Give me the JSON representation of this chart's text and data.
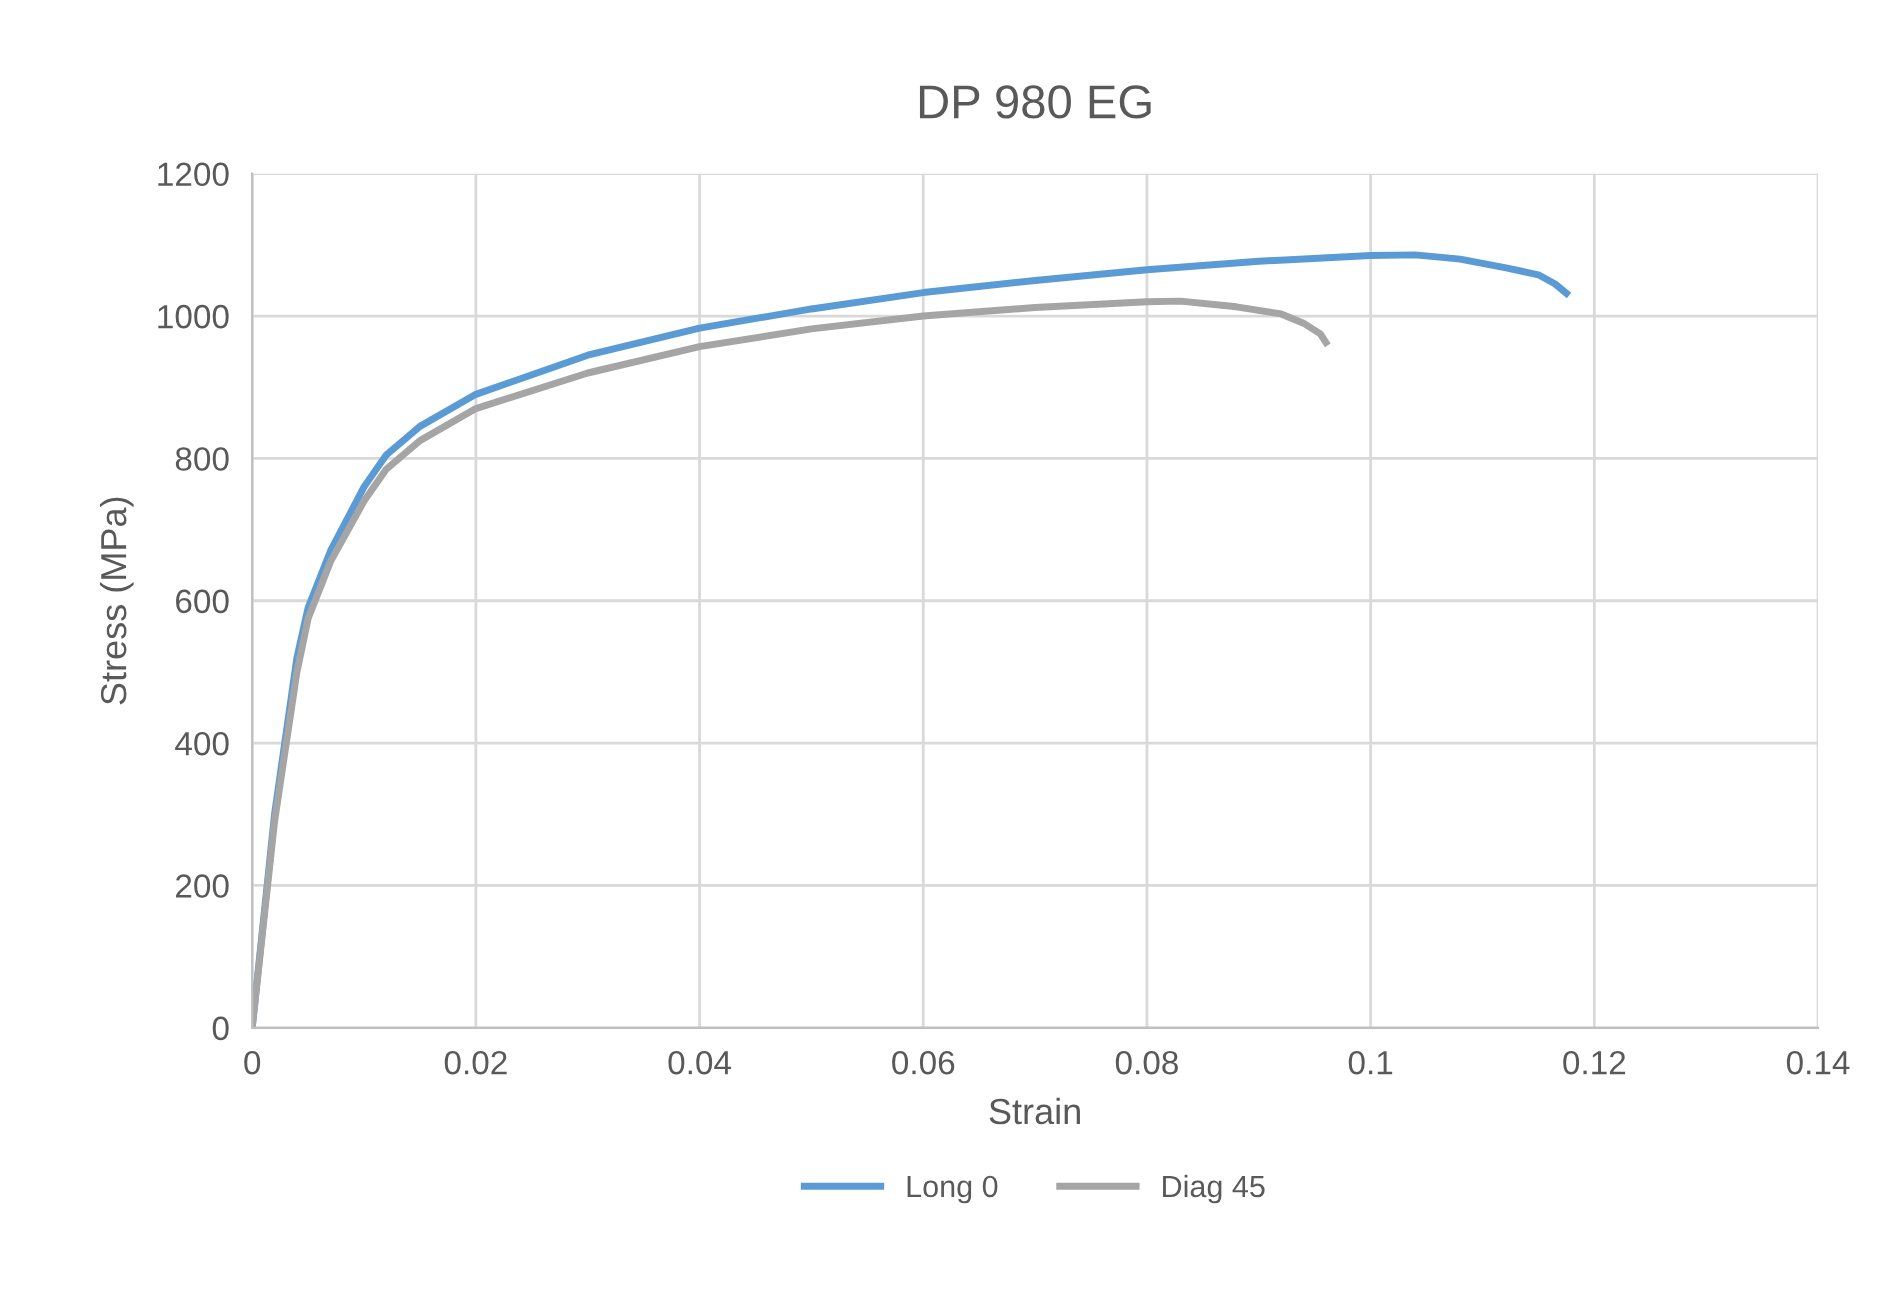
{
  "chart_data": {
    "type": "line",
    "title": "DP 980 EG",
    "xlabel": "Strain",
    "ylabel": "Stress (MPa)",
    "xlim": [
      0,
      0.14
    ],
    "xticks": [
      0,
      0.02,
      0.04,
      0.06,
      0.08,
      0.1,
      0.12,
      0.14
    ],
    "ylim": [
      0,
      1200
    ],
    "yticks": [
      0,
      200,
      400,
      600,
      800,
      1000,
      1200
    ],
    "grid": true,
    "legend": "bottom",
    "marker": "none",
    "line_style": "solid",
    "series": [
      {
        "name": "Long 0",
        "color": "#5b9bd5",
        "x": [
          0,
          0.002,
          0.004,
          0.005,
          0.007,
          0.01,
          0.012,
          0.015,
          0.02,
          0.03,
          0.04,
          0.05,
          0.06,
          0.07,
          0.08,
          0.09,
          0.1,
          0.104,
          0.108,
          0.112,
          0.115,
          0.1165,
          0.1175
        ],
        "values": [
          0,
          300,
          520,
          590,
          670,
          760,
          805,
          845,
          890,
          945,
          983,
          1010,
          1033,
          1050,
          1065,
          1077,
          1085,
          1086,
          1080,
          1068,
          1058,
          1045,
          1032
        ]
      },
      {
        "name": "Diag 45",
        "color": "#a5a5a5",
        "x": [
          0,
          0.002,
          0.004,
          0.005,
          0.007,
          0.01,
          0.012,
          0.015,
          0.02,
          0.03,
          0.04,
          0.05,
          0.06,
          0.07,
          0.08,
          0.083,
          0.088,
          0.092,
          0.094,
          0.0955,
          0.096
        ],
        "values": [
          0,
          290,
          500,
          575,
          655,
          740,
          785,
          825,
          870,
          920,
          957,
          982,
          1000,
          1012,
          1020,
          1021,
          1013,
          1003,
          990,
          975,
          963
        ]
      }
    ]
  }
}
